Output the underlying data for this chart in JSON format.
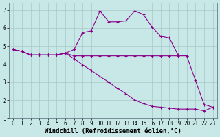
{
  "xlabel": "Windchill (Refroidissement éolien,°C)",
  "background_color": "#c8e8e8",
  "line_color": "#880088",
  "grid_color": "#a8c8c8",
  "xlim_min": -0.5,
  "xlim_max": 23.5,
  "ylim_min": 1.0,
  "ylim_max": 7.4,
  "xticks": [
    0,
    1,
    2,
    3,
    4,
    5,
    6,
    7,
    8,
    9,
    10,
    11,
    12,
    13,
    14,
    15,
    16,
    17,
    18,
    19,
    20,
    21,
    22,
    23
  ],
  "yticks": [
    1,
    2,
    3,
    4,
    5,
    6,
    7
  ],
  "line_upper_x": [
    0,
    1,
    2,
    3,
    4,
    5,
    6,
    7,
    8,
    9,
    10,
    11,
    12,
    13,
    14,
    15,
    16,
    17,
    18,
    19,
    20,
    21,
    22,
    23
  ],
  "line_upper_y": [
    4.8,
    4.7,
    4.5,
    4.5,
    4.5,
    4.5,
    4.6,
    4.8,
    5.75,
    5.85,
    6.95,
    6.35,
    6.35,
    6.4,
    6.95,
    6.75,
    6.05,
    5.55,
    5.45,
    4.5,
    4.45,
    3.1,
    1.75,
    1.6
  ],
  "line_flat_x": [
    0,
    1,
    2,
    3,
    4,
    5,
    6,
    7,
    8,
    9,
    10,
    11,
    12,
    13,
    14,
    15,
    16,
    17,
    18,
    19,
    20
  ],
  "line_flat_y": [
    4.8,
    4.7,
    4.5,
    4.5,
    4.5,
    4.5,
    4.6,
    4.45,
    4.45,
    4.45,
    4.45,
    4.45,
    4.45,
    4.45,
    4.45,
    4.45,
    4.45,
    4.45,
    4.45,
    4.45,
    4.45
  ],
  "line_lower_x": [
    0,
    1,
    2,
    3,
    4,
    5,
    6,
    7,
    8,
    9,
    10,
    11,
    12,
    13,
    14,
    15,
    16,
    17,
    18,
    19,
    20,
    21,
    22,
    23
  ],
  "line_lower_y": [
    4.8,
    4.7,
    4.5,
    4.5,
    4.5,
    4.5,
    4.6,
    4.3,
    3.95,
    3.65,
    3.3,
    3.0,
    2.65,
    2.35,
    2.0,
    1.8,
    1.65,
    1.6,
    1.55,
    1.5,
    1.5,
    1.5,
    1.4,
    1.6
  ],
  "tick_fontsize": 5.5,
  "label_fontsize": 6.5
}
